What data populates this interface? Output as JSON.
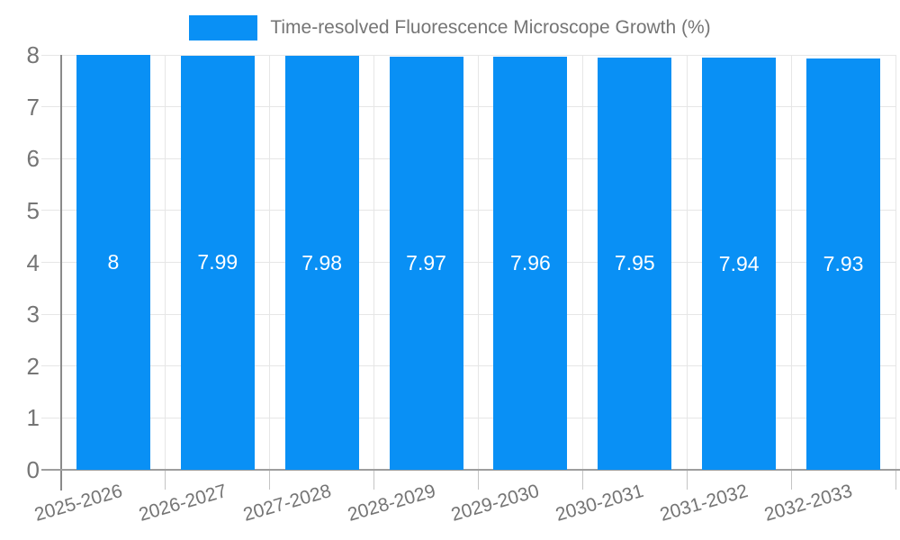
{
  "legend": {
    "label": "Time-resolved Fluorescence Microscope Growth (%)"
  },
  "chart_data": {
    "type": "bar",
    "title": "Time-resolved Fluorescence Microscope Growth (%)",
    "categories": [
      "2025-2026",
      "2026-2027",
      "2027-2028",
      "2028-2029",
      "2029-2030",
      "2030-2031",
      "2031-2032",
      "2032-2033"
    ],
    "values": [
      8,
      7.99,
      7.98,
      7.97,
      7.96,
      7.95,
      7.94,
      7.93
    ],
    "bar_labels": [
      "8",
      "7.99",
      "7.98",
      "7.97",
      "7.96",
      "7.95",
      "7.94",
      "7.93"
    ],
    "xlabel": "",
    "ylabel": "",
    "ylim": [
      0,
      8
    ],
    "yticks": [
      0,
      1,
      2,
      3,
      4,
      5,
      6,
      7,
      8
    ],
    "grid": true,
    "legend_position": "top",
    "x_label_rotation_deg": -16,
    "colors": {
      "bar": "#0990f5",
      "bar_label": "#ffffff",
      "text": "#757575",
      "grid": "#e6e6e6",
      "axis": "#9e9e9e",
      "axis_dark": "#8a8a8a",
      "minor_tick": "#c4c4c4",
      "background": "#ffffff"
    }
  }
}
